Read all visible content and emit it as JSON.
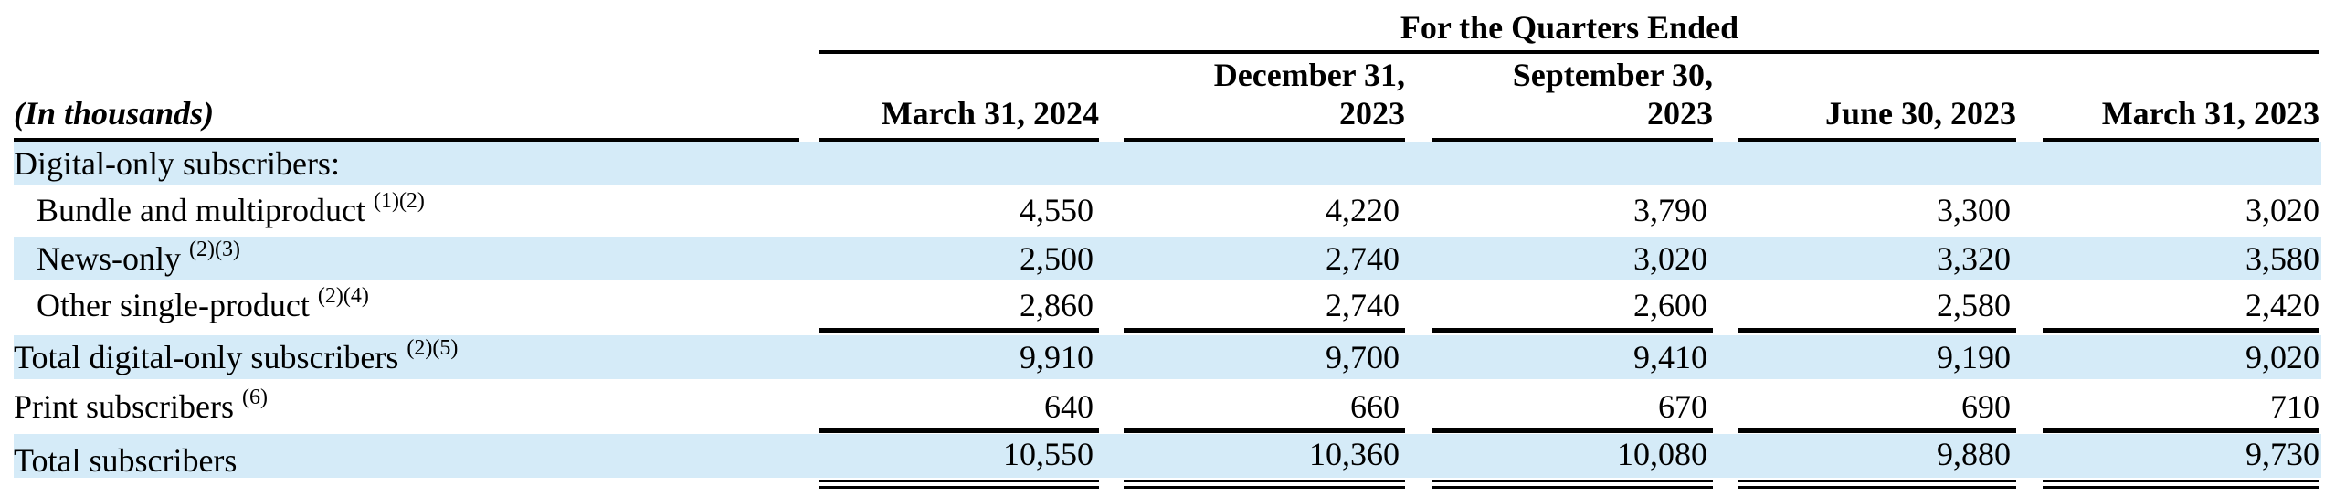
{
  "header": {
    "group_title": "For the Quarters Ended",
    "row_label_header": "(In thousands)",
    "columns": [
      {
        "line1": "",
        "line2": "March 31, 2024"
      },
      {
        "line1": "December 31,",
        "line2": "2023"
      },
      {
        "line1": "September 30,",
        "line2": "2023"
      },
      {
        "line1": "",
        "line2": "June 30, 2023"
      },
      {
        "line1": "",
        "line2": "March 31, 2023"
      }
    ]
  },
  "rows": [
    {
      "label": "Digital-only subscribers:",
      "note": "",
      "values": [
        "",
        "",
        "",
        "",
        ""
      ]
    },
    {
      "label": "Bundle and multiproduct",
      "note": "(1)(2)",
      "values": [
        "4,550",
        "4,220",
        "3,790",
        "3,300",
        "3,020"
      ]
    },
    {
      "label": "News-only",
      "note": "(2)(3)",
      "values": [
        "2,500",
        "2,740",
        "3,020",
        "3,320",
        "3,580"
      ]
    },
    {
      "label": "Other single-product",
      "note": "(2)(4)",
      "values": [
        "2,860",
        "2,740",
        "2,600",
        "2,580",
        "2,420"
      ]
    },
    {
      "label": "Total digital-only subscribers",
      "note": "(2)(5)",
      "values": [
        "9,910",
        "9,700",
        "9,410",
        "9,190",
        "9,020"
      ]
    },
    {
      "label": "Print subscribers",
      "note": "(6)",
      "values": [
        "640",
        "660",
        "670",
        "690",
        "710"
      ]
    },
    {
      "label": "Total subscribers",
      "note": "",
      "values": [
        "10,550",
        "10,360",
        "10,080",
        "9,880",
        "9,730"
      ]
    }
  ]
}
